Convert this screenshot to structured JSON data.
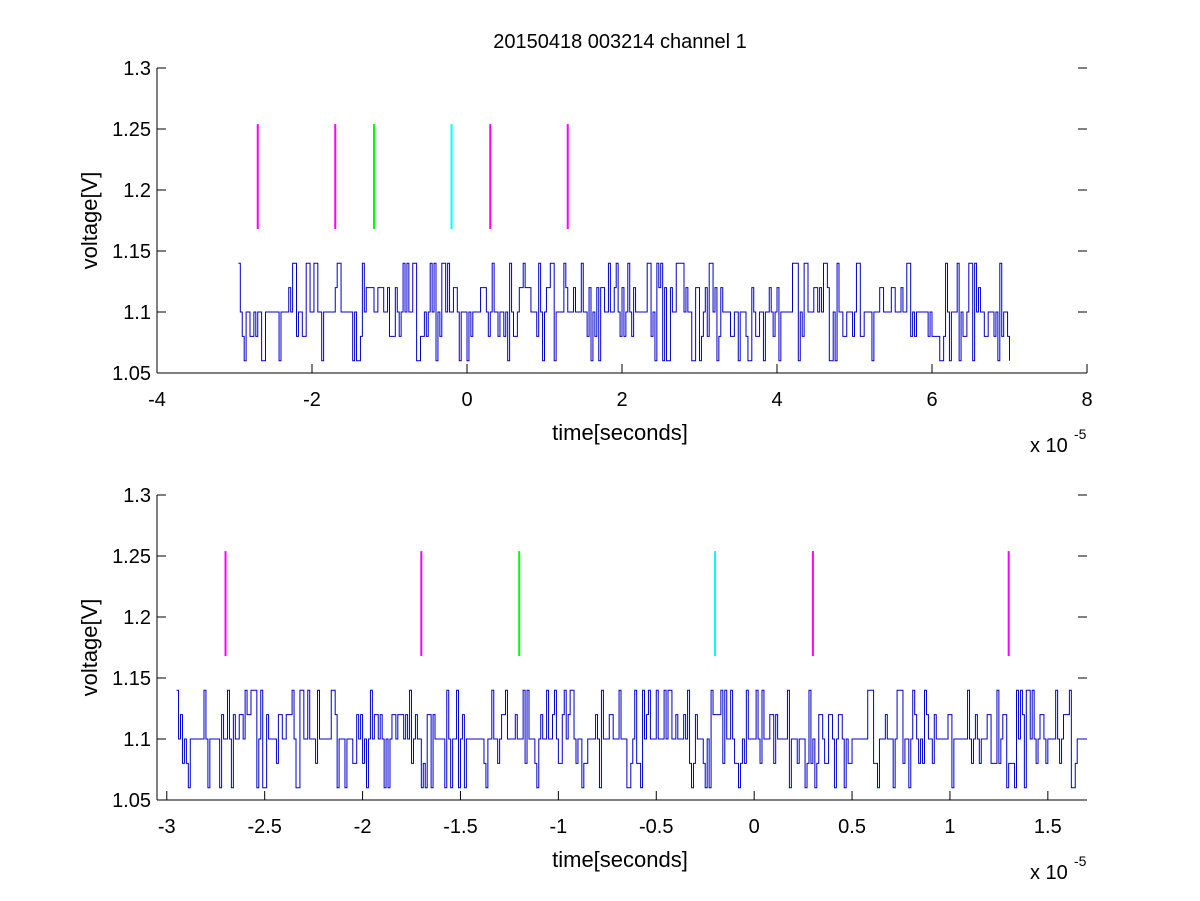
{
  "figure": {
    "title": "20150418 003214 channel 1"
  },
  "chart_data": [
    {
      "type": "line",
      "title": "20150418 003214 channel 1",
      "xlabel": "time[seconds]",
      "ylabel": "voltage[V]",
      "x_exponent_label": "x 10",
      "x_exponent": "-5",
      "xlim": [
        -4,
        8
      ],
      "ylim": [
        1.05,
        1.3
      ],
      "xticks": [
        -4,
        -2,
        0,
        2,
        4,
        6,
        8
      ],
      "xtick_labels": [
        "-4",
        "-2",
        "0",
        "2",
        "4",
        "6",
        "8"
      ],
      "yticks": [
        1.05,
        1.1,
        1.15,
        1.2,
        1.25,
        1.3
      ],
      "ytick_labels": [
        "1.05",
        "1.1",
        "1.15",
        "1.2",
        "1.25",
        "1.3"
      ],
      "grid": false,
      "signal": {
        "color": "#0000cc",
        "x_start": -2.95,
        "x_end": 7.0,
        "sample_step": 0.025,
        "baseline": 1.1,
        "levels": [
          1.06,
          1.08,
          1.1,
          1.12,
          1.14
        ]
      },
      "markers": [
        {
          "x": -2.7,
          "y_from": 1.168,
          "y_to": 1.254,
          "color": "#ff00ff"
        },
        {
          "x": -1.7,
          "y_from": 1.168,
          "y_to": 1.254,
          "color": "#ff00ff"
        },
        {
          "x": -1.2,
          "y_from": 1.168,
          "y_to": 1.254,
          "color": "#00ff00"
        },
        {
          "x": -0.2,
          "y_from": 1.168,
          "y_to": 1.254,
          "color": "#00ffff"
        },
        {
          "x": 0.3,
          "y_from": 1.168,
          "y_to": 1.254,
          "color": "#ff00ff"
        },
        {
          "x": 1.3,
          "y_from": 1.168,
          "y_to": 1.254,
          "color": "#ff00ff"
        }
      ]
    },
    {
      "type": "line",
      "title": "",
      "xlabel": "time[seconds]",
      "ylabel": "voltage[V]",
      "x_exponent_label": "x 10",
      "x_exponent": "-5",
      "xlim": [
        -3.05,
        1.7
      ],
      "ylim": [
        1.05,
        1.3
      ],
      "xticks": [
        -3,
        -2.5,
        -2,
        -1.5,
        -1,
        -0.5,
        0,
        0.5,
        1,
        1.5
      ],
      "xtick_labels": [
        "-3",
        "-2.5",
        "-2",
        "-1.5",
        "-1",
        "-0.5",
        "0",
        "0.5",
        "1",
        "1.5"
      ],
      "yticks": [
        1.05,
        1.1,
        1.15,
        1.2,
        1.25,
        1.3
      ],
      "ytick_labels": [
        "1.05",
        "1.1",
        "1.15",
        "1.2",
        "1.25",
        "1.3"
      ],
      "grid": false,
      "signal": {
        "color": "#0000cc",
        "x_start": -2.95,
        "x_end": 1.7,
        "sample_step": 0.01,
        "baseline": 1.1,
        "levels": [
          1.06,
          1.08,
          1.1,
          1.12,
          1.14
        ]
      },
      "markers": [
        {
          "x": -2.7,
          "y_from": 1.168,
          "y_to": 1.254,
          "color": "#ff00ff"
        },
        {
          "x": -1.7,
          "y_from": 1.168,
          "y_to": 1.254,
          "color": "#ff00ff"
        },
        {
          "x": -1.2,
          "y_from": 1.168,
          "y_to": 1.254,
          "color": "#00ff00"
        },
        {
          "x": -0.2,
          "y_from": 1.168,
          "y_to": 1.254,
          "color": "#00ffff"
        },
        {
          "x": 0.3,
          "y_from": 1.168,
          "y_to": 1.254,
          "color": "#ff00ff"
        },
        {
          "x": 1.3,
          "y_from": 1.168,
          "y_to": 1.254,
          "color": "#ff00ff"
        }
      ]
    }
  ]
}
